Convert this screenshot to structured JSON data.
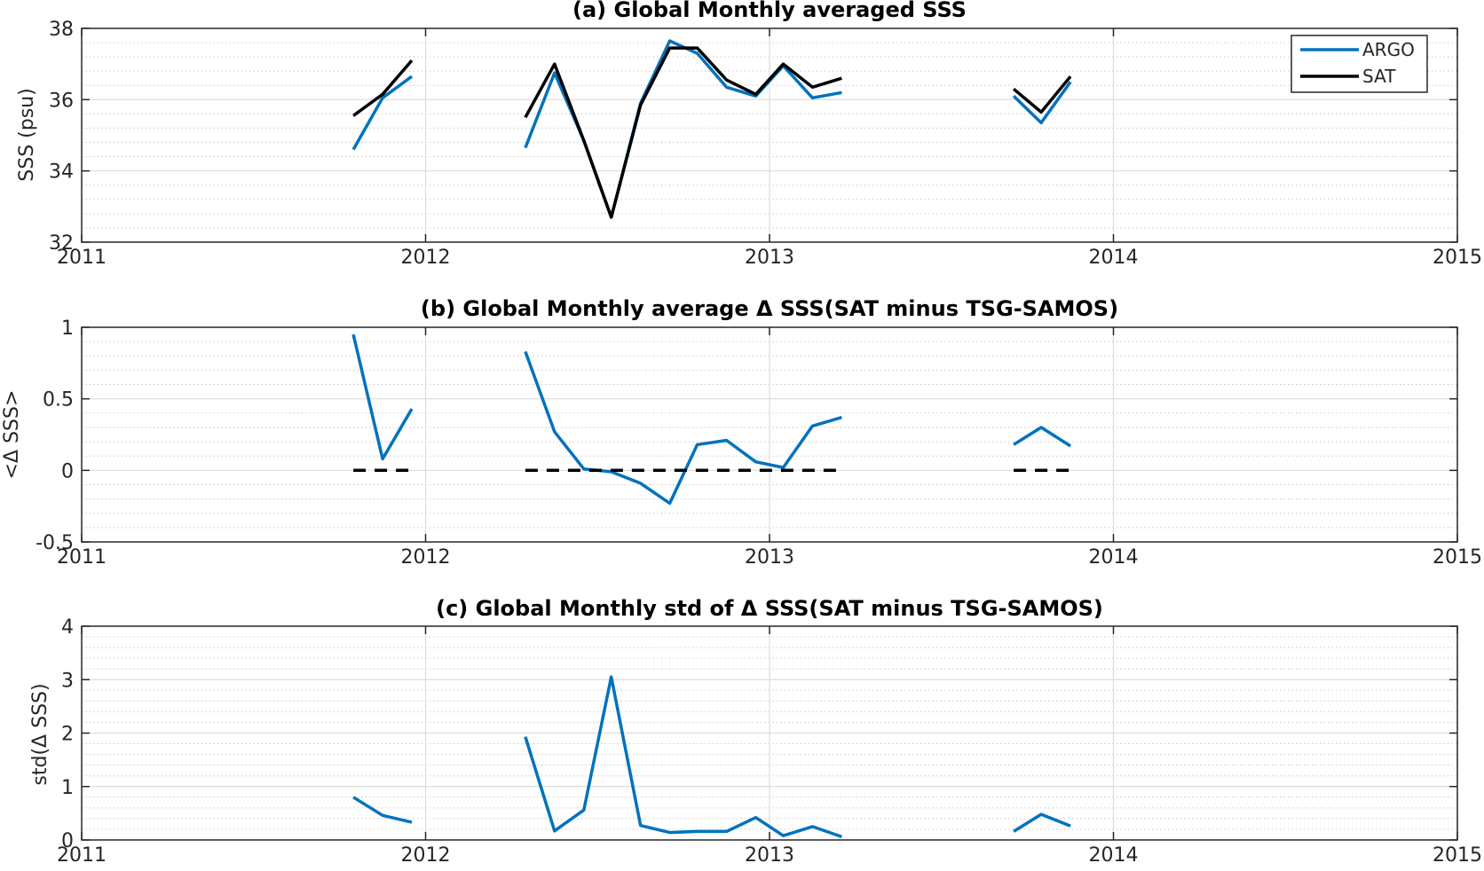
{
  "colors": {
    "argo": "#0072BD",
    "sat": "#000000",
    "grid_major": "#dcdcdc",
    "grid_minor": "#c8c8c8",
    "axis": "#262626"
  },
  "chart_data": [
    {
      "type": "line",
      "title": "(a) Global Monthly averaged SSS",
      "ylabel": "SSS (psu)",
      "xlim": [
        2011,
        2015
      ],
      "ylim": [
        32,
        38
      ],
      "xticks": [
        2011,
        2012,
        2013,
        2014,
        2015
      ],
      "xtick_labels": [
        "2011",
        "2012",
        "2013",
        "2014",
        "2015"
      ],
      "yticks": [
        32,
        34,
        36,
        38
      ],
      "ytick_labels": [
        "32",
        "34",
        "36",
        "38"
      ],
      "grid": true,
      "minor_grid_y": true,
      "legend": "top-right",
      "series": [
        {
          "name": "ARGO",
          "color_key": "argo",
          "style": "solid",
          "segments": [
            [
              [
                2011.79,
                34.6
              ],
              [
                2011.875,
                36.05
              ],
              [
                2011.96,
                36.65
              ]
            ],
            [
              [
                2012.29,
                34.65
              ],
              [
                2012.375,
                36.75
              ],
              [
                2012.46,
                34.85
              ],
              [
                2012.54,
                32.7
              ],
              [
                2012.625,
                35.9
              ],
              [
                2012.71,
                37.65
              ],
              [
                2012.79,
                37.3
              ],
              [
                2012.875,
                36.35
              ],
              [
                2012.96,
                36.1
              ],
              [
                2013.04,
                36.95
              ],
              [
                2013.125,
                36.05
              ],
              [
                2013.21,
                36.2
              ]
            ],
            [
              [
                2013.71,
                36.1
              ],
              [
                2013.79,
                35.35
              ],
              [
                2013.875,
                36.5
              ]
            ]
          ]
        },
        {
          "name": "SAT",
          "color_key": "sat",
          "style": "solid",
          "segments": [
            [
              [
                2011.79,
                35.55
              ],
              [
                2011.875,
                36.15
              ],
              [
                2011.96,
                37.1
              ]
            ],
            [
              [
                2012.29,
                35.5
              ],
              [
                2012.375,
                37.0
              ],
              [
                2012.46,
                34.85
              ],
              [
                2012.54,
                32.7
              ],
              [
                2012.625,
                35.85
              ],
              [
                2012.71,
                37.45
              ],
              [
                2012.79,
                37.45
              ],
              [
                2012.875,
                36.55
              ],
              [
                2012.96,
                36.15
              ],
              [
                2013.04,
                37.0
              ],
              [
                2013.125,
                36.35
              ],
              [
                2013.21,
                36.6
              ]
            ],
            [
              [
                2013.71,
                36.3
              ],
              [
                2013.79,
                35.65
              ],
              [
                2013.875,
                36.65
              ]
            ]
          ]
        }
      ]
    },
    {
      "type": "line",
      "title": "(b) Global Monthly average Δ SSS(SAT minus TSG-SAMOS)",
      "ylabel": "<Δ SSS>",
      "xlim": [
        2011,
        2015
      ],
      "ylim": [
        -0.5,
        1
      ],
      "xticks": [
        2011,
        2012,
        2013,
        2014,
        2015
      ],
      "xtick_labels": [
        "2011",
        "2012",
        "2013",
        "2014",
        "2015"
      ],
      "yticks": [
        -0.5,
        0,
        0.5,
        1
      ],
      "ytick_labels": [
        "-0.5",
        "0",
        "0.5",
        "1"
      ],
      "grid": true,
      "minor_grid_y": true,
      "series": [
        {
          "name": "",
          "color_key": "argo",
          "style": "solid",
          "segments": [
            [
              [
                2011.79,
                0.95
              ],
              [
                2011.875,
                0.08
              ],
              [
                2011.96,
                0.43
              ]
            ],
            [
              [
                2012.29,
                0.83
              ],
              [
                2012.375,
                0.27
              ],
              [
                2012.46,
                0.01
              ],
              [
                2012.54,
                -0.01
              ],
              [
                2012.625,
                -0.09
              ],
              [
                2012.71,
                -0.23
              ],
              [
                2012.79,
                0.18
              ],
              [
                2012.875,
                0.21
              ],
              [
                2012.96,
                0.06
              ],
              [
                2013.04,
                0.02
              ],
              [
                2013.125,
                0.31
              ],
              [
                2013.21,
                0.37
              ]
            ],
            [
              [
                2013.71,
                0.18
              ],
              [
                2013.79,
                0.3
              ],
              [
                2013.875,
                0.17
              ]
            ]
          ]
        },
        {
          "name": "",
          "color_key": "sat",
          "style": "dashed",
          "segments": [
            [
              [
                2011.79,
                0
              ],
              [
                2011.96,
                0
              ]
            ],
            [
              [
                2012.29,
                0
              ],
              [
                2013.21,
                0
              ]
            ],
            [
              [
                2013.71,
                0
              ],
              [
                2013.875,
                0
              ]
            ]
          ]
        }
      ]
    },
    {
      "type": "line",
      "title": "(c) Global Monthly std of Δ SSS(SAT minus TSG-SAMOS)",
      "ylabel": "std(Δ SSS)",
      "xlim": [
        2011,
        2015
      ],
      "ylim": [
        0,
        4
      ],
      "xticks": [
        2011,
        2012,
        2013,
        2014,
        2015
      ],
      "xtick_labels": [
        "2011",
        "2012",
        "2013",
        "2014",
        "2015"
      ],
      "yticks": [
        0,
        1,
        2,
        3,
        4
      ],
      "ytick_labels": [
        "0",
        "1",
        "2",
        "3",
        "4"
      ],
      "grid": true,
      "minor_grid_y": true,
      "series": [
        {
          "name": "",
          "color_key": "argo",
          "style": "solid",
          "segments": [
            [
              [
                2011.79,
                0.8
              ],
              [
                2011.875,
                0.46
              ],
              [
                2011.96,
                0.33
              ]
            ],
            [
              [
                2012.29,
                1.93
              ],
              [
                2012.375,
                0.17
              ],
              [
                2012.46,
                0.56
              ],
              [
                2012.54,
                3.05
              ],
              [
                2012.625,
                0.27
              ],
              [
                2012.71,
                0.14
              ],
              [
                2012.79,
                0.16
              ],
              [
                2012.875,
                0.16
              ],
              [
                2012.96,
                0.42
              ],
              [
                2013.04,
                0.08
              ],
              [
                2013.125,
                0.25
              ],
              [
                2013.21,
                0.06
              ]
            ],
            [
              [
                2013.71,
                0.16
              ],
              [
                2013.79,
                0.48
              ],
              [
                2013.875,
                0.26
              ]
            ]
          ]
        }
      ]
    }
  ]
}
